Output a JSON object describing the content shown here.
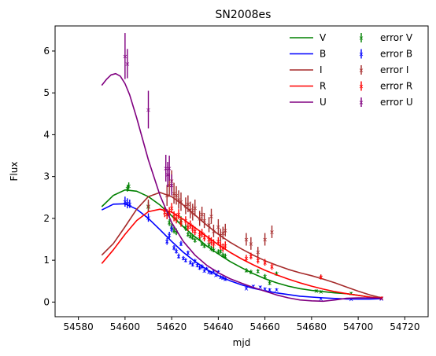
{
  "chart_data": {
    "type": "line",
    "title": "SN2008es",
    "xlabel": "mjd",
    "ylabel": "Flux",
    "xlim": [
      54570,
      54730
    ],
    "ylim": [
      -0.35,
      6.6
    ],
    "xticks": [
      54580,
      54600,
      54620,
      54640,
      54660,
      54680,
      54700,
      54720
    ],
    "yticks": [
      0,
      1,
      2,
      3,
      4,
      5,
      6
    ],
    "grid": false,
    "legend_position": "top-right",
    "legend": {
      "fit_labels": [
        "V",
        "B",
        "I",
        "R",
        "U"
      ],
      "error_labels": [
        "error V",
        "error B",
        "error I",
        "error R",
        "error U"
      ]
    },
    "series": [
      {
        "name": "V",
        "color": "#008000",
        "fit": {
          "x": [
            54590,
            54595,
            54600,
            54605,
            54610,
            54615,
            54620,
            54625,
            54630,
            54635,
            54640,
            54645,
            54650,
            54655,
            54660,
            54665,
            54670,
            54675,
            54680,
            54685,
            54690,
            54695,
            54700,
            54705,
            54710
          ],
          "y": [
            2.28,
            2.55,
            2.68,
            2.65,
            2.52,
            2.32,
            2.06,
            1.8,
            1.56,
            1.34,
            1.15,
            0.97,
            0.82,
            0.68,
            0.56,
            0.46,
            0.38,
            0.32,
            0.28,
            0.25,
            0.22,
            0.2,
            0.16,
            0.12,
            0.09
          ]
        },
        "errors": {
          "x": [
            54601,
            54601.6,
            54610,
            54618,
            54619,
            54620,
            54621,
            54622,
            54624,
            54626,
            54627,
            54628,
            54629,
            54630,
            54632,
            54633,
            54634,
            54636,
            54637,
            54638,
            54640,
            54641,
            54642,
            54643,
            54652,
            54654,
            54657,
            54660,
            54662,
            54665,
            54682,
            54684,
            54697,
            54710
          ],
          "y": [
            2.72,
            2.78,
            2.28,
            2.1,
            1.9,
            1.8,
            1.72,
            1.68,
            1.95,
            1.78,
            1.62,
            1.58,
            1.55,
            1.48,
            1.52,
            1.4,
            1.35,
            1.38,
            1.28,
            1.25,
            1.2,
            1.22,
            1.12,
            1.1,
            0.76,
            0.72,
            0.74,
            0.62,
            0.46,
            0.68,
            0.27,
            0.25,
            0.21,
            0.1
          ],
          "err": [
            0.08,
            0.08,
            0.12,
            0.1,
            0.08,
            0.08,
            0.08,
            0.08,
            0.1,
            0.08,
            0.06,
            0.06,
            0.06,
            0.06,
            0.06,
            0.06,
            0.06,
            0.08,
            0.06,
            0.06,
            0.06,
            0.06,
            0.06,
            0.06,
            0.05,
            0.05,
            0.05,
            0.05,
            0.05,
            0.05,
            0.03,
            0.03,
            0.03,
            0.03
          ]
        }
      },
      {
        "name": "B",
        "color": "#0000ff",
        "fit": {
          "x": [
            54590,
            54595,
            54600,
            54605,
            54610,
            54615,
            54620,
            54625,
            54630,
            54635,
            54640,
            54645,
            54650,
            54655,
            54660,
            54665,
            54670,
            54675,
            54680,
            54685,
            54690,
            54695,
            54700,
            54705,
            54710
          ],
          "y": [
            2.2,
            2.34,
            2.35,
            2.22,
            2.0,
            1.73,
            1.45,
            1.19,
            0.97,
            0.78,
            0.63,
            0.51,
            0.41,
            0.33,
            0.27,
            0.22,
            0.18,
            0.14,
            0.12,
            0.1,
            0.085,
            0.075,
            0.07,
            0.07,
            0.08
          ]
        },
        "errors": {
          "x": [
            54600,
            54601,
            54602,
            54610,
            54618,
            54619,
            54620,
            54621,
            54622,
            54623,
            54624,
            54625,
            54626,
            54627,
            54628,
            54629,
            54630,
            54631,
            54632,
            54633,
            54634,
            54635,
            54636,
            54637,
            54638,
            54639,
            54640,
            54641,
            54642,
            54643,
            54652,
            54655,
            54658,
            54660,
            54662,
            54665,
            54684,
            54697,
            54710
          ],
          "y": [
            2.4,
            2.36,
            2.35,
            2.02,
            1.45,
            1.6,
            1.75,
            1.3,
            1.22,
            1.1,
            1.4,
            1.05,
            1.0,
            1.18,
            0.95,
            0.9,
            0.98,
            0.88,
            0.82,
            0.85,
            0.75,
            0.8,
            0.72,
            0.7,
            0.75,
            0.65,
            0.72,
            0.6,
            0.58,
            0.55,
            0.33,
            0.38,
            0.36,
            0.32,
            0.3,
            0.3,
            0.08,
            0.07,
            0.08
          ],
          "err": [
            0.12,
            0.12,
            0.1,
            0.1,
            0.08,
            0.08,
            0.08,
            0.06,
            0.06,
            0.06,
            0.06,
            0.05,
            0.05,
            0.05,
            0.05,
            0.05,
            0.05,
            0.05,
            0.05,
            0.05,
            0.04,
            0.04,
            0.04,
            0.04,
            0.04,
            0.04,
            0.04,
            0.04,
            0.04,
            0.04,
            0.03,
            0.03,
            0.03,
            0.03,
            0.03,
            0.03,
            0.02,
            0.02,
            0.02
          ]
        }
      },
      {
        "name": "I",
        "color": "#a52a2a",
        "fit": {
          "x": [
            54590,
            54595,
            54600,
            54605,
            54610,
            54615,
            54620,
            54625,
            54630,
            54635,
            54640,
            54645,
            54650,
            54655,
            54660,
            54665,
            54670,
            54675,
            54680,
            54685,
            54690,
            54695,
            54700,
            54705,
            54710
          ],
          "y": [
            1.12,
            1.4,
            1.8,
            2.22,
            2.52,
            2.62,
            2.52,
            2.32,
            2.08,
            1.84,
            1.62,
            1.43,
            1.27,
            1.12,
            0.99,
            0.88,
            0.78,
            0.7,
            0.63,
            0.55,
            0.46,
            0.36,
            0.26,
            0.17,
            0.1
          ]
        },
        "errors": {
          "x": [
            54610,
            54618,
            54619,
            54620,
            54621,
            54622,
            54623,
            54624,
            54626,
            54627,
            54628,
            54629,
            54630,
            54632,
            54633,
            54634,
            54636,
            54637,
            54638,
            54640,
            54641,
            54642,
            54643,
            54652,
            54654,
            54657,
            54660,
            54663,
            54684,
            54710
          ],
          "y": [
            2.3,
            2.55,
            2.8,
            2.9,
            2.6,
            2.55,
            2.45,
            2.4,
            2.3,
            2.35,
            2.2,
            2.15,
            2.25,
            2.0,
            2.1,
            1.95,
            1.85,
            2.05,
            1.7,
            1.8,
            1.6,
            1.65,
            1.72,
            1.5,
            1.4,
            1.2,
            1.5,
            1.68,
            0.6,
            0.1
          ],
          "err": [
            0.15,
            0.25,
            0.28,
            0.25,
            0.25,
            0.22,
            0.22,
            0.22,
            0.2,
            0.2,
            0.2,
            0.2,
            0.2,
            0.18,
            0.18,
            0.18,
            0.18,
            0.18,
            0.15,
            0.18,
            0.15,
            0.15,
            0.15,
            0.15,
            0.15,
            0.12,
            0.15,
            0.15,
            0.06,
            0.03
          ]
        }
      },
      {
        "name": "R",
        "color": "#ff0000",
        "fit": {
          "x": [
            54590,
            54595,
            54600,
            54605,
            54610,
            54615,
            54620,
            54625,
            54630,
            54635,
            54640,
            54645,
            54650,
            54655,
            54660,
            54665,
            54670,
            54675,
            54680,
            54685,
            54690,
            54695,
            54700,
            54705,
            54710
          ],
          "y": [
            0.92,
            1.25,
            1.62,
            1.95,
            2.16,
            2.22,
            2.15,
            1.98,
            1.78,
            1.57,
            1.37,
            1.19,
            1.03,
            0.89,
            0.76,
            0.65,
            0.55,
            0.46,
            0.38,
            0.31,
            0.25,
            0.2,
            0.16,
            0.12,
            0.09
          ]
        },
        "errors": {
          "x": [
            54617,
            54618,
            54619,
            54620,
            54621,
            54622,
            54623,
            54624,
            54626,
            54627,
            54628,
            54629,
            54630,
            54632,
            54633,
            54634,
            54636,
            54637,
            54638,
            54640,
            54641,
            54642,
            54643,
            54652,
            54654,
            54657,
            54660,
            54663,
            54684,
            54710
          ],
          "y": [
            2.15,
            2.1,
            2.15,
            2.25,
            2.05,
            2.0,
            2.1,
            1.9,
            1.95,
            1.8,
            1.85,
            1.75,
            1.7,
            1.62,
            1.65,
            1.55,
            1.5,
            1.45,
            1.4,
            1.45,
            1.35,
            1.3,
            1.35,
            1.05,
            1.1,
            1.0,
            0.95,
            0.85,
            0.6,
            0.1
          ],
          "err": [
            0.12,
            0.12,
            0.12,
            0.12,
            0.12,
            0.12,
            0.12,
            0.1,
            0.1,
            0.1,
            0.1,
            0.1,
            0.1,
            0.1,
            0.1,
            0.1,
            0.1,
            0.1,
            0.1,
            0.1,
            0.1,
            0.1,
            0.1,
            0.08,
            0.08,
            0.08,
            0.08,
            0.08,
            0.05,
            0.03
          ]
        }
      },
      {
        "name": "U",
        "color": "#800080",
        "fit": {
          "x": [
            54590,
            54592,
            54594,
            54596,
            54598,
            54600,
            54602,
            54605,
            54610,
            54615,
            54620,
            54625,
            54630,
            54635,
            54640,
            54645,
            54650,
            54655,
            54660,
            54665,
            54670,
            54675,
            54680,
            54685,
            54690,
            54695,
            54700,
            54705,
            54710
          ],
          "y": [
            5.18,
            5.32,
            5.43,
            5.46,
            5.4,
            5.22,
            4.95,
            4.4,
            3.4,
            2.55,
            1.9,
            1.45,
            1.12,
            0.88,
            0.7,
            0.56,
            0.45,
            0.35,
            0.26,
            0.17,
            0.1,
            0.05,
            0.03,
            0.02,
            0.05,
            0.09,
            0.1,
            0.1,
            0.09
          ]
        },
        "errors": {
          "x": [
            54600,
            54601,
            54610,
            54617.5,
            54618.3,
            54619,
            54620
          ],
          "y": [
            5.88,
            5.7,
            4.6,
            3.2,
            3.05,
            3.2,
            2.8
          ],
          "err": [
            0.55,
            0.35,
            0.45,
            0.32,
            0.3,
            0.3,
            0.25
          ]
        }
      }
    ]
  }
}
